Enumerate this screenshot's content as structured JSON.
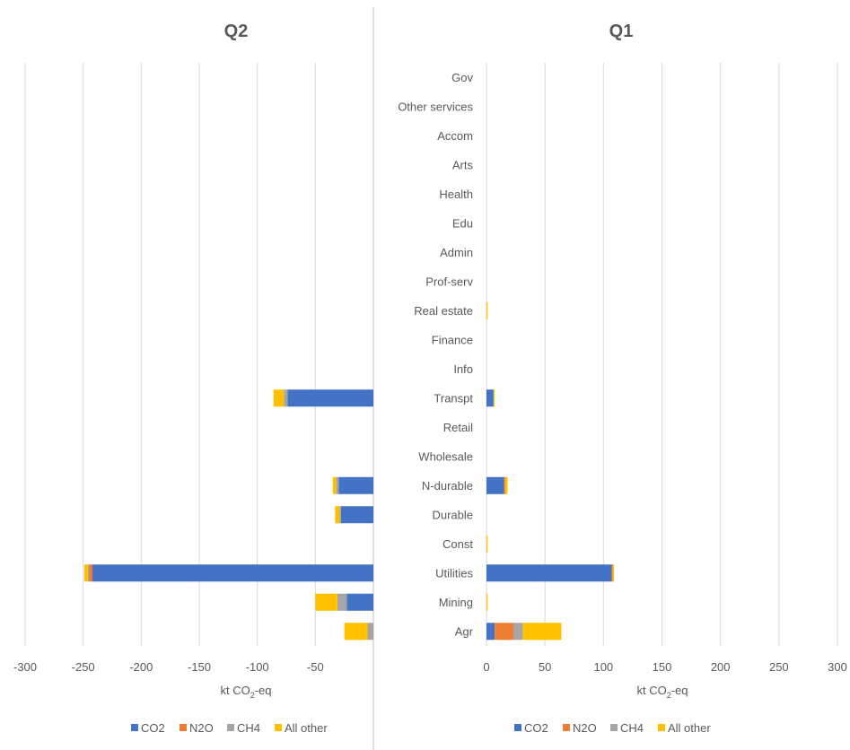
{
  "colors": {
    "CO2": "#4472C4",
    "N2O": "#ED7D31",
    "CH4": "#A5A5A5",
    "All other": "#FFC000",
    "grid": "#d9d9d9",
    "divider": "#bfbfbf"
  },
  "chart_data": [
    {
      "type": "bar",
      "orientation": "horizontal",
      "stacked": true,
      "title": "Q2",
      "xlabel": "kt CO2-eq",
      "xlim": [
        -300,
        0
      ],
      "xticks": [
        -300,
        -250,
        -200,
        -150,
        -100,
        -50
      ],
      "grid": true,
      "legend_position": "bottom",
      "categories": [
        "Agr",
        "Mining",
        "Utilities",
        "Const",
        "Durable",
        "N-durable",
        "Wholesale",
        "Retail",
        "Transpt",
        "Info",
        "Finance",
        "Real estate",
        "Prof-serv",
        "Admin",
        "Edu",
        "Health",
        "Arts",
        "Accom",
        "Other services",
        "Gov"
      ],
      "series": [
        {
          "name": "CO2",
          "values": [
            0,
            -23,
            -242,
            0,
            -28,
            -30,
            0,
            0,
            -74,
            0,
            0,
            0,
            0,
            0,
            0,
            0,
            0,
            0,
            0,
            0
          ]
        },
        {
          "name": "N2O",
          "values": [
            0,
            0,
            -3,
            0,
            0,
            0,
            0,
            0,
            0,
            0,
            0,
            0,
            0,
            0,
            0,
            0,
            0,
            0,
            0,
            0
          ]
        },
        {
          "name": "CH4",
          "values": [
            -5,
            -8,
            -1,
            0,
            -1,
            -2,
            0,
            0,
            -3,
            0,
            0,
            0,
            0,
            0,
            0,
            0,
            0,
            0,
            0,
            0
          ]
        },
        {
          "name": "All other",
          "values": [
            -20,
            -19,
            -3,
            0,
            -4,
            -3,
            0,
            0,
            -9,
            0,
            0,
            0,
            0,
            0,
            0,
            0,
            0,
            0,
            0,
            0
          ]
        }
      ]
    },
    {
      "type": "bar",
      "orientation": "horizontal",
      "stacked": true,
      "title": "Q1",
      "xlabel": "kt CO2-eq",
      "xlim": [
        0,
        300
      ],
      "xticks": [
        0,
        50,
        100,
        150,
        200,
        250,
        300
      ],
      "grid": true,
      "legend_position": "bottom",
      "categories": [
        "Agr",
        "Mining",
        "Utilities",
        "Const",
        "Durable",
        "N-durable",
        "Wholesale",
        "Retail",
        "Transpt",
        "Info",
        "Finance",
        "Real estate",
        "Prof-serv",
        "Admin",
        "Edu",
        "Health",
        "Arts",
        "Accom",
        "Other services",
        "Gov"
      ],
      "series": [
        {
          "name": "CO2",
          "values": [
            7,
            0,
            107,
            0,
            0,
            15,
            0,
            0,
            6,
            0,
            0,
            0,
            0,
            0,
            0,
            0,
            0,
            0,
            0,
            0
          ]
        },
        {
          "name": "N2O",
          "values": [
            16,
            0,
            1,
            0,
            0,
            1,
            0,
            0,
            0,
            0,
            0,
            0,
            0,
            0,
            0,
            0,
            0,
            0,
            0,
            0
          ]
        },
        {
          "name": "CH4",
          "values": [
            8,
            0,
            0,
            0,
            0,
            0,
            0,
            0,
            0,
            0,
            0,
            0,
            0,
            0,
            0,
            0,
            0,
            0,
            0,
            0
          ]
        },
        {
          "name": "All other",
          "values": [
            33,
            1,
            1,
            1,
            0,
            2,
            0,
            0,
            1,
            0,
            0,
            1,
            0,
            0,
            0,
            0,
            0,
            0,
            0,
            0
          ]
        }
      ]
    }
  ],
  "labels": {
    "q2_title": "Q2",
    "q1_title": "Q1",
    "q2_axis_title_main": "kt CO",
    "q2_axis_title_sub": "2",
    "q2_axis_title_end": "-eq",
    "q1_axis_title_main": "kt CO",
    "q1_axis_title_sub": "2",
    "q1_axis_title_end": "-eq"
  }
}
